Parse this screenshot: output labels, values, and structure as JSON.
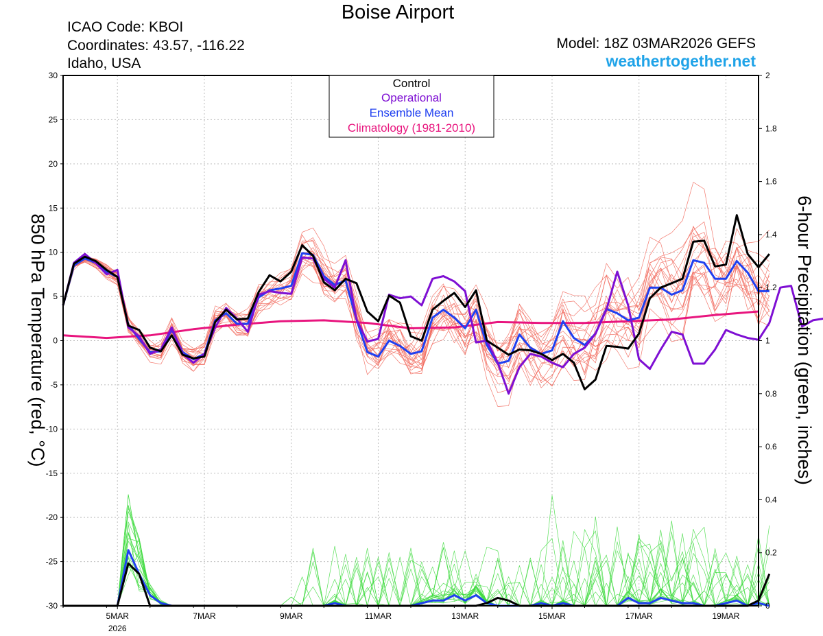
{
  "header": {
    "title": "Boise Airport",
    "icao": "ICAO Code: KBOI",
    "coordinates": "Coordinates: 43.57, -116.22",
    "region": "Idaho, USA",
    "model": "Model: 18Z 03MAR2026 GEFS",
    "site": "weathertogether.net"
  },
  "colors": {
    "members_temp": "#f26a5e",
    "members_precip": "#3ddb3d",
    "control": "#000000",
    "operational": "#7e0fd3",
    "ensemble_mean": "#2040f0",
    "climatology": "#e8157e",
    "site": "#1fa3e8",
    "grid": "#bdbdbd"
  },
  "chart_data": {
    "type": "line",
    "title": "Boise Airport",
    "ylabel": "850 hPa Temperature (red, °C)",
    "y2label": "6-hour Precipitation (green, inches)",
    "ylim": [
      -30,
      30
    ],
    "y2lim": [
      0,
      2
    ],
    "yticks": [
      "30",
      "25",
      "20",
      "15",
      "10",
      "5",
      "0",
      "-5",
      "-10",
      "-15",
      "-20",
      "-25",
      "-30"
    ],
    "y2ticks": [
      "2",
      "1.8",
      "1.6",
      "1.4",
      "1.2",
      "1",
      "0.8",
      "0.6",
      "0.4",
      "0.2",
      "0"
    ],
    "xlim_hours": [
      0,
      384
    ],
    "xticks": [
      {
        "hours": 30,
        "label": "5MAR",
        "sublabel": "2026"
      },
      {
        "hours": 78,
        "label": "7MAR"
      },
      {
        "hours": 126,
        "label": "9MAR"
      },
      {
        "hours": 174,
        "label": "11MAR"
      },
      {
        "hours": 222,
        "label": "13MAR"
      },
      {
        "hours": 270,
        "label": "15MAR"
      },
      {
        "hours": 318,
        "label": "17MAR"
      },
      {
        "hours": 366,
        "label": "19MAR"
      }
    ],
    "x_hours_step": 6,
    "legend": [
      {
        "label": "Control",
        "key": "control"
      },
      {
        "label": "Operational",
        "key": "operational"
      },
      {
        "label": "Ensemble Mean",
        "key": "ensemble_mean"
      },
      {
        "label": "Climatology (1981-2010)",
        "key": "climatology"
      }
    ],
    "temperature_series": [
      {
        "name": "Control",
        "values": [
          4,
          8.7,
          9.5,
          9,
          8,
          7.2,
          1.7,
          1.2,
          -0.8,
          -1.2,
          0.6,
          -1.6,
          -2,
          -1.8,
          2.1,
          3.5,
          2.4,
          2.5,
          5.5,
          7.4,
          6.7,
          7.8,
          10.8,
          9.6,
          6.6,
          5.7,
          7,
          6.5,
          3.3,
          2.2,
          5.1,
          4.3,
          0.5,
          0,
          3.5,
          4.5,
          5.4,
          3.8,
          5.7,
          0,
          -0.8,
          -1.6,
          -1,
          -1.1,
          -1.5,
          -2.2,
          -1.5,
          -2.5,
          -5.5,
          -4.4,
          -0.6,
          -0.7,
          -0.9,
          0.8,
          4.8,
          6,
          6.5,
          7,
          11.2,
          11.3,
          8.4,
          8.6,
          14.2,
          9.8,
          8.3,
          9.8
        ]
      },
      {
        "name": "Operational",
        "values": [
          4,
          8.8,
          9.8,
          8.8,
          7.5,
          8,
          1.5,
          0.5,
          -1.5,
          -1,
          1.5,
          -1.5,
          -2.5,
          -1.5,
          1.5,
          3.7,
          2.5,
          1,
          5.2,
          5.6,
          5.4,
          5.3,
          9.4,
          9.3,
          7,
          6,
          9.1,
          2.4,
          -0.1,
          0.2,
          5.2,
          4.8,
          5,
          4,
          7,
          7.3,
          6.7,
          5.6,
          -0.2,
          0,
          -2.5,
          -6,
          -3,
          -1.5,
          -1.8,
          -2.5,
          -3,
          -1.5,
          -0.8,
          0.8,
          3.5,
          7.8,
          4,
          -2.1,
          -3.2,
          -1,
          1,
          0.7,
          -2.6,
          -2.6,
          -1,
          1.2,
          0.7,
          0.3,
          0.1,
          2,
          6,
          6.2,
          1.6,
          2.3,
          2.5
        ]
      },
      {
        "name": "Ensemble Mean",
        "values": [
          4,
          8.5,
          9.3,
          8.8,
          7.8,
          7.2,
          1.8,
          0.2,
          -1.3,
          -1.2,
          1.3,
          -1.3,
          -2.1,
          -1.5,
          2.3,
          3.1,
          1.9,
          1.9,
          4.9,
          5.7,
          5.9,
          6.2,
          9.9,
          9.7,
          7.3,
          6.3,
          6.8,
          2.4,
          -1.3,
          -1.8,
          0,
          -0.6,
          -1.5,
          -1.2,
          2.6,
          3.5,
          2.6,
          1.4,
          3.5,
          -0.5,
          -2.6,
          -2.3,
          0.7,
          -0.8,
          -1.5,
          -1.1,
          2.2,
          0.3,
          -0.5,
          0.8,
          3.6,
          3.1,
          2.3,
          2.6,
          6,
          6,
          5.2,
          5.7,
          9.1,
          8.8,
          7,
          7,
          9,
          7.7,
          5.6,
          5.6
        ]
      },
      {
        "name": "Climatology",
        "values": [
          0.6,
          0.3,
          0.6,
          1.3,
          1.8,
          2.2,
          2.3,
          2,
          1.4,
          1.5,
          2.1,
          2,
          2,
          2.2,
          2.4,
          2.9,
          3.3
        ]
      }
    ],
    "precip_series": [
      {
        "name": "Control",
        "values": [
          0,
          0,
          0,
          0,
          0,
          0,
          0.16,
          0.12,
          0,
          0,
          0,
          0,
          0,
          0,
          0,
          0,
          0,
          0,
          0,
          0,
          0,
          0,
          0,
          0,
          0,
          0,
          0,
          0,
          0,
          0,
          0,
          0,
          0,
          0,
          0,
          0,
          0,
          0,
          0,
          0.01,
          0.03,
          0.02,
          0,
          0,
          0,
          0,
          0,
          0,
          0,
          0,
          0,
          0,
          0,
          0,
          0,
          0,
          0,
          0,
          0,
          0,
          0,
          0,
          0,
          0,
          0.02,
          0.12
        ]
      },
      {
        "name": "Ensemble Mean",
        "values": [
          0,
          0,
          0,
          0,
          0,
          0,
          0.21,
          0.12,
          0.04,
          0.01,
          0,
          0,
          0,
          0,
          0,
          0,
          0,
          0,
          0,
          0,
          0,
          0,
          0,
          0,
          0,
          0.01,
          0,
          0,
          0,
          0,
          0,
          0,
          0,
          0.01,
          0.02,
          0.02,
          0.04,
          0.02,
          0.04,
          0.01,
          0,
          0,
          0,
          0,
          0.01,
          0,
          0.01,
          0,
          0,
          0,
          0,
          0,
          0.03,
          0.01,
          0.01,
          0.03,
          0.02,
          0.01,
          0.01,
          0,
          0,
          0.01,
          0.02,
          0,
          0.01,
          0
        ]
      }
    ]
  }
}
